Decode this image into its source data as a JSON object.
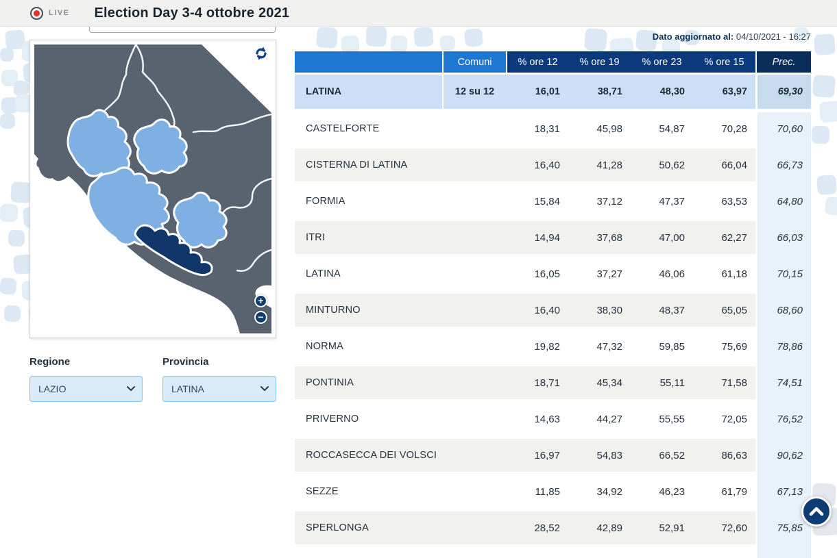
{
  "header": {
    "live_label": "LIVE",
    "title": "Election Day 3-4 ottobre 2021"
  },
  "map_panel": {
    "refresh_icon": "refresh-arrows",
    "zoom_in_label": "+",
    "zoom_out_label": "−",
    "selected_province": "LATINA",
    "highlighted_region": "LAZIO"
  },
  "filters": {
    "regione": {
      "label": "Regione",
      "value": "LAZIO"
    },
    "provincia": {
      "label": "Provincia",
      "value": "LATINA"
    }
  },
  "status": {
    "updated_label": "Dato aggiornato al:",
    "updated_value": "04/10/2021 - 16:27"
  },
  "table": {
    "columns": [
      "",
      "Comuni",
      "% ore 12",
      "% ore 19",
      "% ore 23",
      "% ore 15",
      "Prec."
    ],
    "summary": {
      "name": "LATINA",
      "comuni": "12 su 12",
      "v1": "16,01",
      "v2": "38,71",
      "v3": "48,30",
      "v4": "63,97",
      "prec": "69,30"
    },
    "rows": [
      {
        "name": "CASTELFORTE",
        "v1": "18,31",
        "v2": "45,98",
        "v3": "54,87",
        "v4": "70,28",
        "prec": "70,60"
      },
      {
        "name": "CISTERNA DI LATINA",
        "v1": "16,40",
        "v2": "41,28",
        "v3": "50,62",
        "v4": "66,04",
        "prec": "66,73"
      },
      {
        "name": "FORMIA",
        "v1": "15,84",
        "v2": "37,12",
        "v3": "47,37",
        "v4": "63,53",
        "prec": "64,80"
      },
      {
        "name": "ITRI",
        "v1": "14,94",
        "v2": "37,68",
        "v3": "47,00",
        "v4": "62,27",
        "prec": "66,03"
      },
      {
        "name": "LATINA",
        "v1": "16,05",
        "v2": "37,27",
        "v3": "46,06",
        "v4": "61,18",
        "prec": "70,15"
      },
      {
        "name": "MINTURNO",
        "v1": "16,40",
        "v2": "38,30",
        "v3": "48,37",
        "v4": "65,05",
        "prec": "68,60"
      },
      {
        "name": "NORMA",
        "v1": "19,82",
        "v2": "47,32",
        "v3": "59,85",
        "v4": "75,69",
        "prec": "78,86"
      },
      {
        "name": "PONTINIA",
        "v1": "18,71",
        "v2": "45,34",
        "v3": "55,11",
        "v4": "71,58",
        "prec": "74,51"
      },
      {
        "name": "PRIVERNO",
        "v1": "14,63",
        "v2": "44,27",
        "v3": "55,55",
        "v4": "72,05",
        "prec": "76,52"
      },
      {
        "name": "ROCCASECCA DEI VOLSCI",
        "v1": "16,97",
        "v2": "54,83",
        "v3": "66,52",
        "v4": "86,63",
        "prec": "90,62"
      },
      {
        "name": "SEZZE",
        "v1": "11,85",
        "v2": "34,92",
        "v3": "46,23",
        "v4": "61,79",
        "prec": "67,13"
      },
      {
        "name": "SPERLONGA",
        "v1": "28,52",
        "v2": "42,89",
        "v3": "52,91",
        "v4": "72,60",
        "prec": "75,85"
      }
    ]
  },
  "scroll_top": {
    "icon": "chevron-up"
  },
  "colors": {
    "header_blue": "#1E78D1",
    "header_navy": "#0B3A7C",
    "prec_header_navy": "#0A2C59",
    "summary_row_bg": "#CBE0F6",
    "row_alt_bg": "#F1F1EE",
    "prec_column_bg": "#E9F1FA",
    "map_land": "#58636F",
    "map_region_highlight": "#7EB0E4",
    "map_selected_province": "#10366A",
    "live_red": "#E8312E",
    "button_navy": "#0D3D73"
  }
}
